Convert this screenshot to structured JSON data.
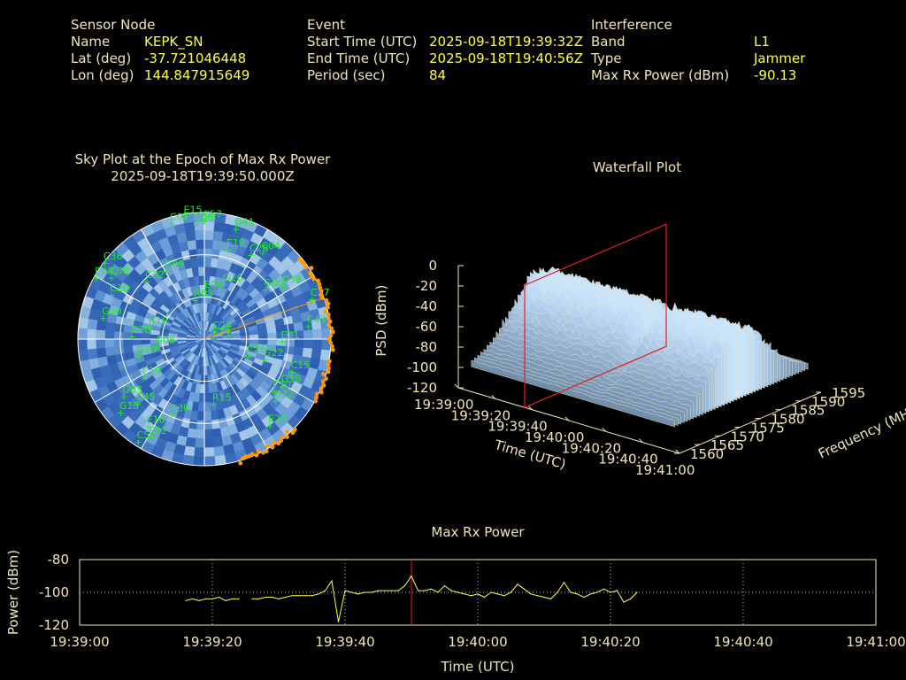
{
  "header": {
    "sensor": {
      "heading": "Sensor Node",
      "rows": [
        {
          "label": "Name",
          "value": "KEPK_SN"
        },
        {
          "label": "Lat (deg)",
          "value": "-37.721046448"
        },
        {
          "label": "Lon (deg)",
          "value": "144.847915649"
        }
      ]
    },
    "event": {
      "heading": "Event",
      "rows": [
        {
          "label": "Start Time (UTC)",
          "value": "2025-09-18T19:39:32Z"
        },
        {
          "label": "End Time (UTC)",
          "value": "2025-09-18T19:40:56Z"
        },
        {
          "label": "Period (sec)",
          "value": "84"
        }
      ]
    },
    "interference": {
      "heading": "Interference",
      "rows": [
        {
          "label": "Band",
          "value": "L1"
        },
        {
          "label": "Type",
          "value": "Jammer"
        },
        {
          "label": "Max Rx Power (dBm)",
          "value": "-90.13"
        }
      ]
    }
  },
  "colors": {
    "label": "#f0e6b4",
    "value": "#ffff40",
    "satellite": "#22ee22",
    "jammer_marker": "#ff9900",
    "line": "#ffff40",
    "marker_line": "#dd2222"
  },
  "chart_data": [
    {
      "type": "scatter",
      "title": "Sky Plot at the Epoch of Max Rx Power",
      "subtitle": "2025-09-18T19:39:50.000Z",
      "jammer_bearing_deg": 71,
      "satellites": [
        {
          "id": "C07",
          "az": 345,
          "el": 5
        },
        {
          "id": "C46",
          "az": 357,
          "el": 8
        },
        {
          "id": "E15",
          "az": 352,
          "el": 2
        },
        {
          "id": "C57",
          "az": 1,
          "el": 6
        },
        {
          "id": "G41",
          "az": 17,
          "el": 8
        },
        {
          "id": "E19",
          "az": 16,
          "el": 24
        },
        {
          "id": "C28",
          "az": 30,
          "el": 21
        },
        {
          "id": "C04",
          "az": 35,
          "el": 15
        },
        {
          "id": "G26",
          "az": 22,
          "el": 48
        },
        {
          "id": "C39",
          "az": 57,
          "el": 21
        },
        {
          "id": "G00",
          "az": 52,
          "el": 33
        },
        {
          "id": "C37",
          "az": 70,
          "el": 7
        },
        {
          "id": "C43",
          "az": 83,
          "el": 14
        },
        {
          "id": "E31",
          "az": 92,
          "el": 33
        },
        {
          "id": "G22",
          "az": 108,
          "el": 43
        },
        {
          "id": "C26",
          "az": 110,
          "el": 55
        },
        {
          "id": "C15",
          "az": 110,
          "el": 22
        },
        {
          "id": "G18",
          "az": 120,
          "el": 24
        },
        {
          "id": "E30",
          "az": 126,
          "el": 27
        },
        {
          "id": "G32",
          "az": 130,
          "el": 22
        },
        {
          "id": "E25",
          "az": 142,
          "el": 12
        },
        {
          "id": "R15",
          "az": 170,
          "el": 43
        },
        {
          "id": "C30",
          "az": 202,
          "el": 32
        },
        {
          "id": "G03",
          "az": 234,
          "el": 21
        },
        {
          "id": "C45",
          "az": 225,
          "el": 25
        },
        {
          "id": "G15",
          "az": 228,
          "el": 12
        },
        {
          "id": "E16",
          "az": 212,
          "el": 17
        },
        {
          "id": "E12",
          "az": 208,
          "el": 11
        },
        {
          "id": "C51",
          "az": 212,
          "el": 4
        },
        {
          "id": "C19",
          "az": 237,
          "el": 40
        },
        {
          "id": "G08",
          "az": 260,
          "el": 57
        },
        {
          "id": "G29",
          "az": 255,
          "el": 43
        },
        {
          "id": "G30",
          "az": 272,
          "el": 40
        },
        {
          "id": "R10",
          "az": 283,
          "el": 52
        },
        {
          "id": "G20",
          "az": 282,
          "el": 18
        },
        {
          "id": "C20",
          "az": 296,
          "el": 18
        },
        {
          "id": "C38",
          "az": 304,
          "el": 12
        },
        {
          "id": "C36",
          "az": 308,
          "el": 2
        },
        {
          "id": "E08",
          "az": 300,
          "el": 3
        },
        {
          "id": "C32",
          "az": 316,
          "el": 33
        },
        {
          "id": "G09",
          "az": 332,
          "el": 35
        },
        {
          "id": "E06",
          "az": 4,
          "el": 56
        },
        {
          "id": "R03",
          "az": 350,
          "el": 62
        },
        {
          "id": "E24",
          "az": 88,
          "el": 82
        },
        {
          "id": "C24",
          "az": 60,
          "el": 80
        }
      ]
    },
    {
      "type": "area",
      "title": "Waterfall Plot",
      "zlabel": "PSD (dBm)",
      "xlabel": "Time (UTC)",
      "ylabel": "Frequency (MHz)",
      "zlim": [
        -120,
        0
      ],
      "z_ticks": [
        "0",
        "-20",
        "-40",
        "-60",
        "-80",
        "-100",
        "-120"
      ],
      "time_ticks": [
        "19:39:00",
        "19:39:20",
        "19:39:40",
        "19:40:00",
        "19:40:20",
        "19:40:40",
        "19:41:00"
      ],
      "freq_ticks": [
        "1560",
        "1565",
        "1570",
        "1575",
        "1580",
        "1585",
        "1590",
        "1595"
      ],
      "marker_time": "19:39:50"
    },
    {
      "type": "line",
      "title": "Max Rx Power",
      "xlabel": "Time (UTC)",
      "ylabel": "Power (dBm)",
      "ylim": [
        -120,
        -80
      ],
      "y_ticks": [
        -80,
        -100,
        -120
      ],
      "x_ticks": [
        "19:39:00",
        "19:39:20",
        "19:39:40",
        "19:40:00",
        "19:40:20",
        "19:40:40",
        "19:41:00"
      ],
      "x_range_sec": [
        0,
        120
      ],
      "marker_sec": 50,
      "series": [
        {
          "x": [
            16,
            17,
            18,
            19,
            20,
            21,
            22,
            23,
            24,
            26,
            27,
            28,
            29,
            30,
            31,
            32,
            33,
            34,
            35,
            36,
            37,
            38,
            39,
            40,
            41,
            42,
            43,
            44,
            45,
            46,
            47,
            48,
            49,
            50,
            51,
            52,
            53,
            54,
            55,
            56,
            57,
            58,
            59,
            60,
            61,
            62,
            63,
            64,
            65,
            66,
            67,
            68,
            69,
            70,
            71,
            72,
            73,
            74,
            75,
            76,
            77,
            78,
            79,
            80,
            81,
            82,
            83,
            84
          ],
          "y": [
            -105,
            -104,
            -105,
            -104,
            -104,
            -103,
            -105,
            -104,
            -104,
            -104,
            -104,
            -103,
            -103,
            -104,
            -103,
            -102,
            -102,
            -102,
            -102,
            -101,
            -99,
            -93,
            -118,
            -99,
            -100,
            -101,
            -100,
            -100,
            -99,
            -99,
            -99,
            -99,
            -96,
            -90,
            -99,
            -99,
            -98,
            -100,
            -96,
            -99,
            -100,
            -101,
            -102,
            -101,
            -103,
            -100,
            -101,
            -102,
            -100,
            -95,
            -98,
            -101,
            -102,
            -103,
            -104,
            -100,
            -94,
            -100,
            -101,
            -103,
            -101,
            -100,
            -98,
            -100,
            -99,
            -106,
            -104,
            -100
          ]
        }
      ]
    }
  ]
}
